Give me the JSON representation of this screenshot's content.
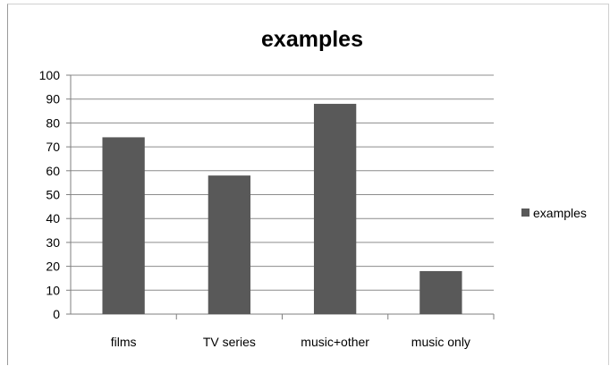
{
  "chart_data": {
    "type": "bar",
    "title": "examples",
    "xlabel": "",
    "ylabel": "",
    "categories": [
      "films",
      "TV series",
      "music+other",
      "music only"
    ],
    "series": [
      {
        "name": "examples",
        "values": [
          74,
          58,
          88,
          18
        ],
        "color": "#595959"
      }
    ],
    "ylim": [
      0,
      100
    ],
    "yticks": [
      "0",
      "10",
      "20",
      "30",
      "40",
      "50",
      "60",
      "70",
      "80",
      "90",
      "100"
    ],
    "grid": true,
    "legend_position": "right"
  }
}
